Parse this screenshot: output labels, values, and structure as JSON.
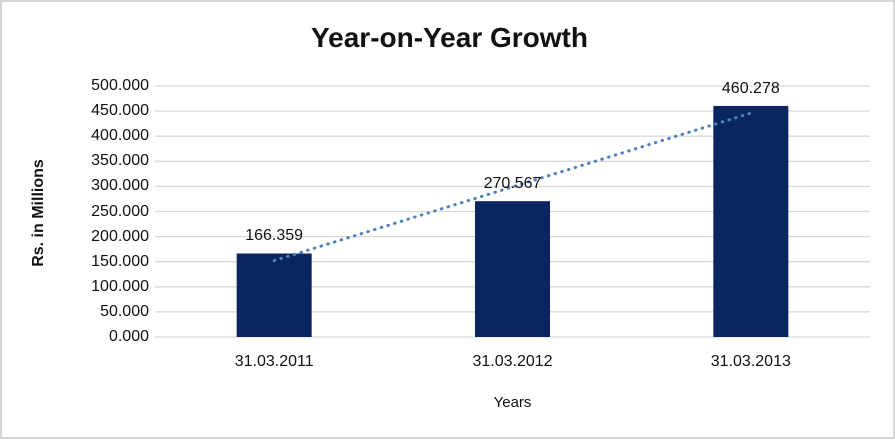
{
  "chart_data": {
    "type": "bar",
    "title": "Year-on-Year Growth",
    "categories": [
      "31.03.2011",
      "31.03.2012",
      "31.03.2013"
    ],
    "values": [
      166.359,
      270.567,
      460.278
    ],
    "value_labels": [
      "166.359",
      "270.567",
      "460.278"
    ],
    "xlabel": "Years",
    "ylabel": "Rs. in Millions",
    "ylim": [
      0,
      500
    ],
    "ytick_step": 50,
    "ytick_labels": [
      "500.000",
      "450.000",
      "400.000",
      "350.000",
      "300.000",
      "250.000",
      "200.000",
      "150.000",
      "100.000",
      "50.000",
      "0.000"
    ],
    "grid": "horizontal",
    "legend": "none",
    "trendline": {
      "type": "linear",
      "style": "dotted",
      "color": "#4f81bd"
    },
    "colors": {
      "bar": "#0a2661",
      "gridline": "#d9d9d9",
      "text": "#111111",
      "frame_border": "#d6d6d6",
      "background": "#ffffff"
    }
  }
}
